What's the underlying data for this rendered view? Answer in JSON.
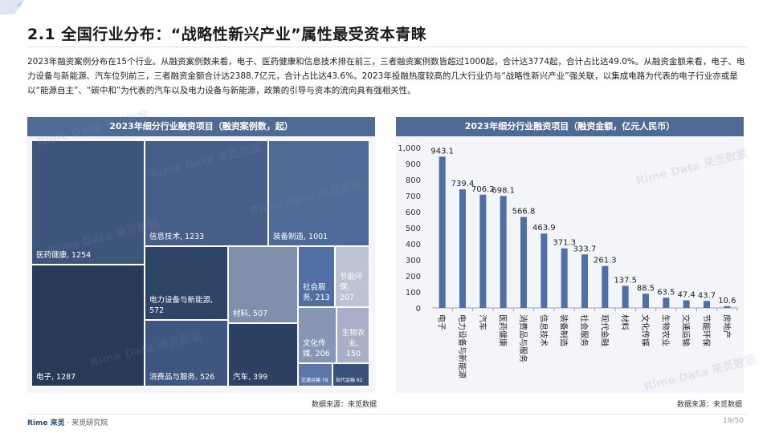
{
  "page": {
    "title": "2.1 全国行业分布：“战略性新兴产业”属性最受资本青睐",
    "body": "2023年融资案例分布在15个行业。从融资案例数来看，电子、医药健康和信息技术排在前三，三者融资案例数皆超过1000起，合计达3774起，合计占比达49.0%。从融资金额来看，电子、电力设备与新能源、汽车位列前三，三者融资金额合计达2388.7亿元，合计占比达43.6%。2023年投融热度较高的几大行业仍与“战略性新兴产业”强关联，以集成电路为代表的电子行业亦或是以“能源自主”、“碳中和”为代表的汽车以及电力设备与新能源，政策的引导与资本的流向具有强相关性。",
    "source_left": "数据来源：来觅数据",
    "source_right": "数据来源：来觅数据",
    "brand": "Rime 来觅",
    "brand_sub": "· 来觅研究院",
    "page_number": "19/50",
    "watermark": "Rime Data 来觅数据",
    "colors": {
      "header": "#4f6b95",
      "bar": "#4f6fa6",
      "panel_bg": "#f3f5f9"
    }
  },
  "chart_data": [
    {
      "type": "treemap",
      "title": "2023年细分行业融资项目（融资案例数，起）",
      "items": [
        {
          "label": "电子, 1287",
          "name": "电子",
          "value": 1287,
          "color": "#273a58"
        },
        {
          "label": "医药健康, 1254",
          "name": "医药健康",
          "value": 1254,
          "color": "#3e557b"
        },
        {
          "label": "信息技术, 1233",
          "name": "信息技术",
          "value": 1233,
          "color": "#475f88"
        },
        {
          "label": "装备制造, 1001",
          "name": "装备制造",
          "value": 1001,
          "color": "#4e6a99"
        },
        {
          "label": "电力设备与新能源, 572",
          "name": "电力设备与新能源",
          "value": 572,
          "color": "#2f4568"
        },
        {
          "label": "消费品与服务, 526",
          "name": "消费品与服务",
          "value": 526,
          "color": "#3f5780"
        },
        {
          "label": "材料, 507",
          "name": "材料",
          "value": 507,
          "color": "#7f8fac"
        },
        {
          "label": "汽车, 399",
          "name": "汽车",
          "value": 399,
          "color": "#2c4163"
        },
        {
          "label": "社会服务, 213",
          "name": "社会服务",
          "value": 213,
          "color": "#526fa3"
        },
        {
          "label": "节能环保, 207",
          "name": "节能环保",
          "value": 207,
          "color": "#bcc3d3"
        },
        {
          "label": "文化传媒, 206",
          "name": "文化传媒",
          "value": 206,
          "color": "#8796b4"
        },
        {
          "label": "生物农业, 150",
          "name": "生物农业",
          "value": 150,
          "color": "#a7b0c6"
        },
        {
          "label": "交通运输 78",
          "name": "交通运输",
          "value": 78,
          "color": "#5d77a8"
        },
        {
          "label": "现代金融 62",
          "name": "现代金融",
          "value": 62,
          "color": "#3a5078"
        }
      ]
    },
    {
      "type": "bar",
      "title": "2023年细分行业融资项目（融资金额，亿元人民币）",
      "categories": [
        "电子",
        "电力设备与新能源",
        "汽车",
        "医药健康",
        "消费品与服务",
        "信息技术",
        "装备制造",
        "社会服务",
        "现代金融",
        "材料",
        "文化传媒",
        "生物农业",
        "交通运输",
        "节能环保",
        "房地产"
      ],
      "values": [
        943.1,
        739.4,
        706.2,
        698.1,
        566.8,
        463.9,
        371.3,
        333.7,
        261.3,
        137.5,
        88.5,
        63.5,
        47.4,
        43.7,
        10.6
      ],
      "value_labels": [
        "943.1",
        "739.4",
        "706.2",
        "698.1",
        "566.8",
        "463.9",
        "371.3",
        "333.7",
        "261.3",
        "137.5",
        "88.5",
        "63.5",
        "47.4",
        "43.7",
        "10.6"
      ],
      "yticks": [
        "0",
        "100",
        "200",
        "300",
        "400",
        "500",
        "600",
        "700",
        "800",
        "900",
        "1,000"
      ],
      "ylim": [
        0,
        1000
      ],
      "grid": false
    }
  ]
}
